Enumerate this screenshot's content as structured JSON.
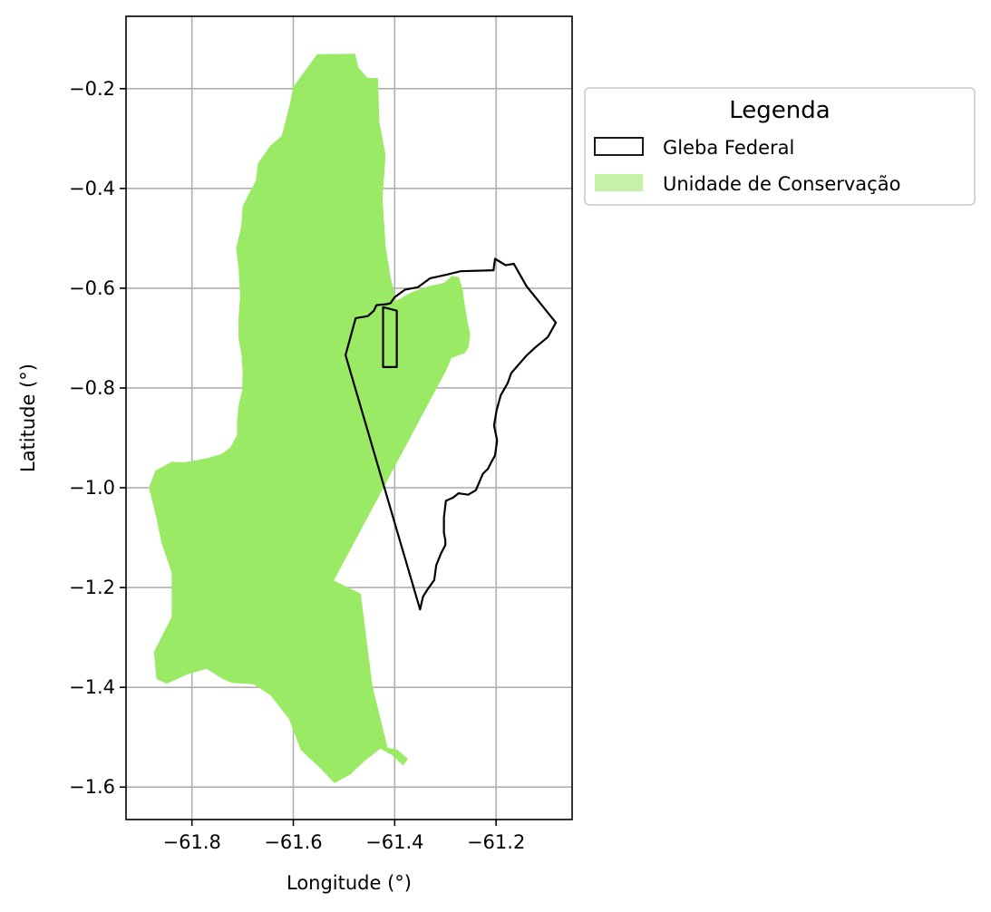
{
  "chart_data": {
    "type": "map",
    "xlabel": "Longitude (°)",
    "ylabel": "Latitude (°)",
    "xlim": [
      -61.93,
      -61.05
    ],
    "ylim": [
      -1.665,
      -0.055
    ],
    "xticks": [
      -61.8,
      -61.6,
      -61.4,
      -61.2
    ],
    "yticks": [
      -0.2,
      -0.4,
      -0.6,
      -0.8,
      -1.0,
      -1.2,
      -1.4,
      -1.6
    ],
    "xtick_labels": [
      "−61.8",
      "−61.6",
      "−61.4",
      "−61.2"
    ],
    "ytick_labels": [
      "−0.2",
      "−0.4",
      "−0.6",
      "−0.8",
      "−1.0",
      "−1.2",
      "−1.4",
      "−1.6"
    ],
    "grid": true,
    "legend": {
      "title": "Legenda",
      "placement": "outside-upper-right",
      "items": [
        {
          "label": "Gleba Federal",
          "style": "outline",
          "color": "#000000"
        },
        {
          "label": "Unidade de Conservação",
          "style": "fill",
          "color": "#c6f1a8"
        }
      ]
    },
    "layers": [
      {
        "name": "Unidade de Conservação",
        "fill": "#9bea66",
        "coords": [
          [
            -61.553,
            -0.131
          ],
          [
            -61.478,
            -0.13
          ],
          [
            -61.472,
            -0.157
          ],
          [
            -61.454,
            -0.178
          ],
          [
            -61.433,
            -0.179
          ],
          [
            -61.43,
            -0.267
          ],
          [
            -61.418,
            -0.334
          ],
          [
            -61.424,
            -0.42
          ],
          [
            -61.418,
            -0.516
          ],
          [
            -61.408,
            -0.578
          ],
          [
            -61.397,
            -0.625
          ],
          [
            -61.366,
            -0.608
          ],
          [
            -61.333,
            -0.596
          ],
          [
            -61.302,
            -0.589
          ],
          [
            -61.287,
            -0.575
          ],
          [
            -61.273,
            -0.578
          ],
          [
            -61.266,
            -0.602
          ],
          [
            -61.261,
            -0.638
          ],
          [
            -61.256,
            -0.669
          ],
          [
            -61.251,
            -0.692
          ],
          [
            -61.254,
            -0.718
          ],
          [
            -61.262,
            -0.73
          ],
          [
            -61.288,
            -0.74
          ],
          [
            -61.298,
            -0.764
          ],
          [
            -61.52,
            -1.186
          ],
          [
            -61.496,
            -1.198
          ],
          [
            -61.467,
            -1.212
          ],
          [
            -61.444,
            -1.397
          ],
          [
            -61.414,
            -1.521
          ],
          [
            -61.395,
            -1.525
          ],
          [
            -61.374,
            -1.543
          ],
          [
            -61.383,
            -1.557
          ],
          [
            -61.405,
            -1.536
          ],
          [
            -61.428,
            -1.523
          ],
          [
            -61.46,
            -1.548
          ],
          [
            -61.488,
            -1.575
          ],
          [
            -61.519,
            -1.592
          ],
          [
            -61.548,
            -1.561
          ],
          [
            -61.585,
            -1.526
          ],
          [
            -61.609,
            -1.463
          ],
          [
            -61.645,
            -1.416
          ],
          [
            -61.678,
            -1.394
          ],
          [
            -61.721,
            -1.391
          ],
          [
            -61.738,
            -1.384
          ],
          [
            -61.771,
            -1.363
          ],
          [
            -61.809,
            -1.374
          ],
          [
            -61.85,
            -1.393
          ],
          [
            -61.87,
            -1.383
          ],
          [
            -61.875,
            -1.329
          ],
          [
            -61.84,
            -1.259
          ],
          [
            -61.84,
            -1.17
          ],
          [
            -61.86,
            -1.11
          ],
          [
            -61.87,
            -1.06
          ],
          [
            -61.885,
            -1.0
          ],
          [
            -61.872,
            -0.966
          ],
          [
            -61.84,
            -0.948
          ],
          [
            -61.816,
            -0.949
          ],
          [
            -61.796,
            -0.946
          ],
          [
            -61.767,
            -0.94
          ],
          [
            -61.741,
            -0.932
          ],
          [
            -61.724,
            -0.919
          ],
          [
            -61.711,
            -0.894
          ],
          [
            -61.711,
            -0.866
          ],
          [
            -61.708,
            -0.836
          ],
          [
            -61.701,
            -0.805
          ],
          [
            -61.7,
            -0.77
          ],
          [
            -61.702,
            -0.735
          ],
          [
            -61.708,
            -0.7
          ],
          [
            -61.708,
            -0.66
          ],
          [
            -61.705,
            -0.616
          ],
          [
            -61.708,
            -0.56
          ],
          [
            -61.713,
            -0.52
          ],
          [
            -61.703,
            -0.478
          ],
          [
            -61.7,
            -0.436
          ],
          [
            -61.69,
            -0.415
          ],
          [
            -61.674,
            -0.385
          ],
          [
            -61.67,
            -0.35
          ],
          [
            -61.646,
            -0.315
          ],
          [
            -61.623,
            -0.295
          ],
          [
            -61.606,
            -0.228
          ],
          [
            -61.6,
            -0.196
          ]
        ]
      },
      {
        "name": "Gleba Federal",
        "stroke": "#000000",
        "coords": [
          [
            -61.202,
            -0.541
          ],
          [
            -61.181,
            -0.554
          ],
          [
            -61.165,
            -0.551
          ],
          [
            -61.14,
            -0.596
          ],
          [
            -61.082,
            -0.669
          ],
          [
            -61.098,
            -0.698
          ],
          [
            -61.123,
            -0.719
          ],
          [
            -61.14,
            -0.735
          ],
          [
            -61.17,
            -0.77
          ],
          [
            -61.177,
            -0.79
          ],
          [
            -61.191,
            -0.815
          ],
          [
            -61.199,
            -0.845
          ],
          [
            -61.204,
            -0.875
          ],
          [
            -61.198,
            -0.905
          ],
          [
            -61.202,
            -0.935
          ],
          [
            -61.21,
            -0.95
          ],
          [
            -61.216,
            -0.962
          ],
          [
            -61.226,
            -0.972
          ],
          [
            -61.24,
            -1.005
          ],
          [
            -61.255,
            -1.014
          ],
          [
            -61.274,
            -1.011
          ],
          [
            -61.285,
            -1.02
          ],
          [
            -61.299,
            -1.026
          ],
          [
            -61.303,
            -1.06
          ],
          [
            -61.303,
            -1.09
          ],
          [
            -61.3,
            -1.105
          ],
          [
            -61.3,
            -1.115
          ],
          [
            -61.308,
            -1.13
          ],
          [
            -61.318,
            -1.155
          ],
          [
            -61.322,
            -1.185
          ],
          [
            -61.334,
            -1.202
          ],
          [
            -61.344,
            -1.218
          ],
          [
            -61.35,
            -1.244
          ],
          [
            -61.497,
            -0.734
          ],
          [
            -61.477,
            -0.66
          ],
          [
            -61.453,
            -0.656
          ],
          [
            -61.441,
            -0.645
          ],
          [
            -61.436,
            -0.634
          ],
          [
            -61.416,
            -0.632
          ],
          [
            -61.408,
            -0.63
          ],
          [
            -61.4,
            -0.618
          ],
          [
            -61.38,
            -0.603
          ],
          [
            -61.354,
            -0.598
          ],
          [
            -61.33,
            -0.58
          ],
          [
            -61.298,
            -0.573
          ],
          [
            -61.27,
            -0.566
          ],
          [
            -61.205,
            -0.564
          ]
        ]
      },
      {
        "name": "Gleba Federal (retângulo)",
        "stroke": "#000000",
        "coords": [
          [
            -61.423,
            -0.638
          ],
          [
            -61.396,
            -0.645
          ],
          [
            -61.396,
            -0.758
          ],
          [
            -61.423,
            -0.758
          ]
        ]
      }
    ]
  }
}
